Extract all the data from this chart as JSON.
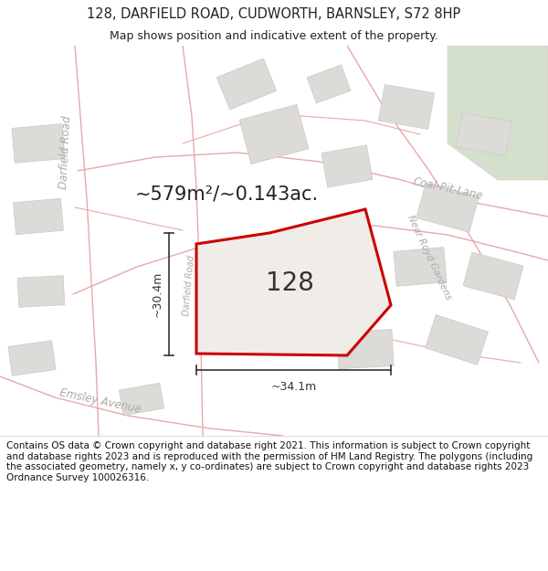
{
  "title_line1": "128, DARFIELD ROAD, CUDWORTH, BARNSLEY, S72 8HP",
  "title_line2": "Map shows position and indicative extent of the property.",
  "area_text": "~579m²/~0.143ac.",
  "number_label": "128",
  "dim_horizontal": "~34.1m",
  "dim_vertical": "~30.4m",
  "footer_text": "Contains OS data © Crown copyright and database right 2021. This information is subject to Crown copyright and database rights 2023 and is reproduced with the permission of HM Land Registry. The polygons (including the associated geometry, namely x, y co-ordinates) are subject to Crown copyright and database rights 2023 Ordnance Survey 100026316.",
  "map_bg": "#f5f3f0",
  "road_color": "#e8a8a8",
  "road_lw": 1.0,
  "building_fill": "#dddbd7",
  "building_edge": "#cccccc",
  "polygon_edge": "#cc0000",
  "polygon_fill": "#f0ede8",
  "green_area": "#d4e0cc",
  "footer_bg": "#ffffff",
  "title_bg": "#ffffff",
  "road_label_color": "#aaaaaa",
  "dim_line_color": "#333333",
  "title_color": "#222222",
  "area_color": "#222222",
  "number_color": "#333333",
  "title_fontsize": 10.5,
  "subtitle_fontsize": 9.0,
  "area_fontsize": 15,
  "number_fontsize": 20,
  "dim_fontsize": 9,
  "road_label_fontsize": 8.5,
  "footer_fontsize": 7.5
}
